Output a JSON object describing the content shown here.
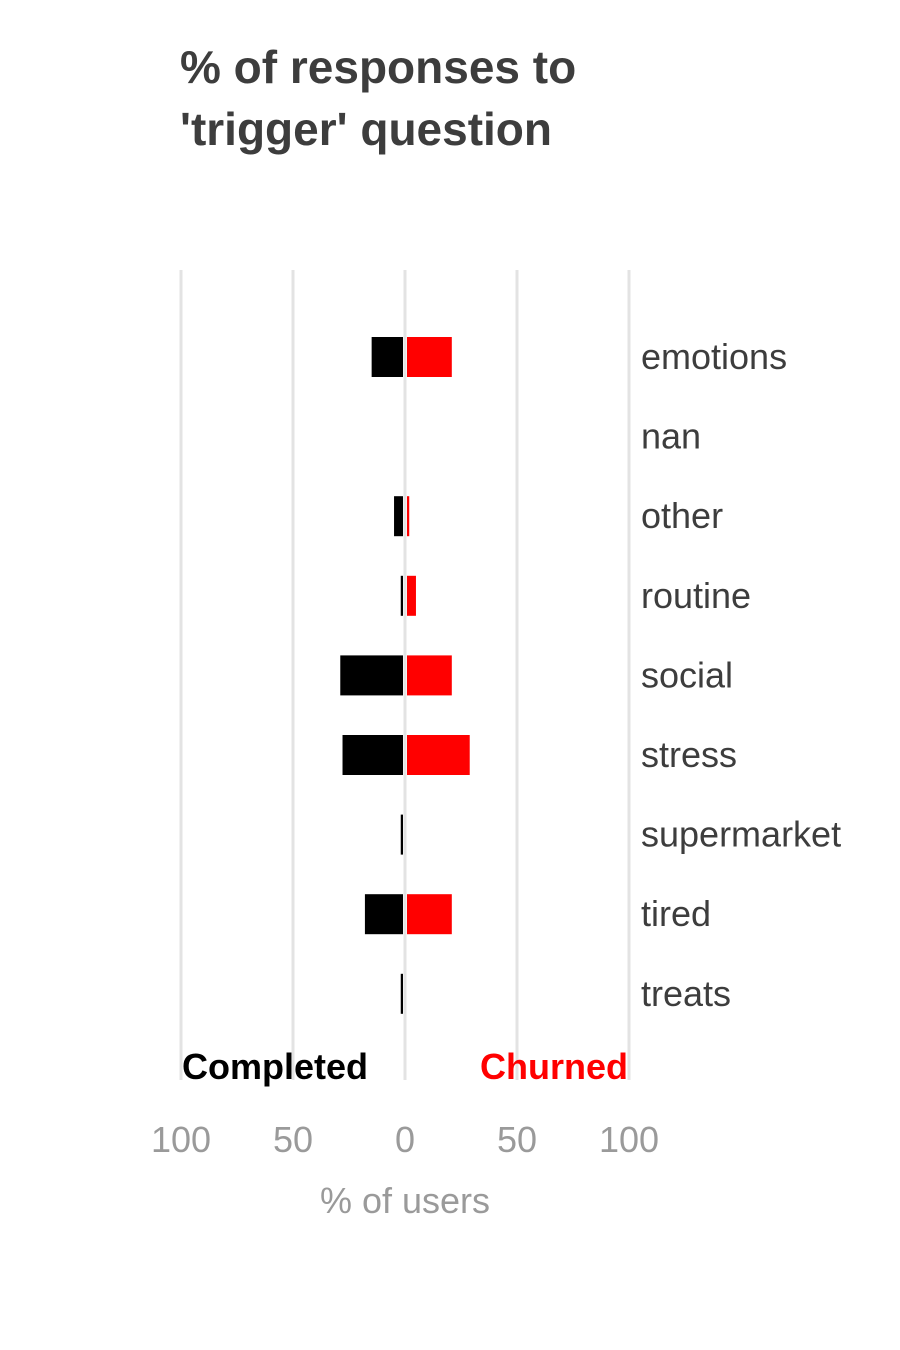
{
  "chart_data": {
    "type": "bar",
    "orientation": "horizontal-diverging",
    "title_lines": [
      "% of responses to",
      "'trigger' question"
    ],
    "xlabel": "% of users",
    "xlim": [
      -100,
      100
    ],
    "x_ticks": [
      -100,
      -50,
      0,
      50,
      100
    ],
    "x_tick_labels": [
      "100",
      "50",
      "0",
      "50",
      "100"
    ],
    "grid": true,
    "categories": [
      "emotions",
      "nan",
      "other",
      "routine",
      "social",
      "stress",
      "supermarket",
      "tired",
      "treats"
    ],
    "series": [
      {
        "name": "Completed",
        "color": "#000000",
        "direction": "left",
        "values": [
          14,
          0,
          4,
          1,
          28,
          27,
          1,
          17,
          1
        ]
      },
      {
        "name": "Churned",
        "color": "#ff0000",
        "direction": "right",
        "values": [
          20,
          0,
          1,
          4,
          20,
          28,
          0,
          20,
          0
        ]
      }
    ]
  }
}
